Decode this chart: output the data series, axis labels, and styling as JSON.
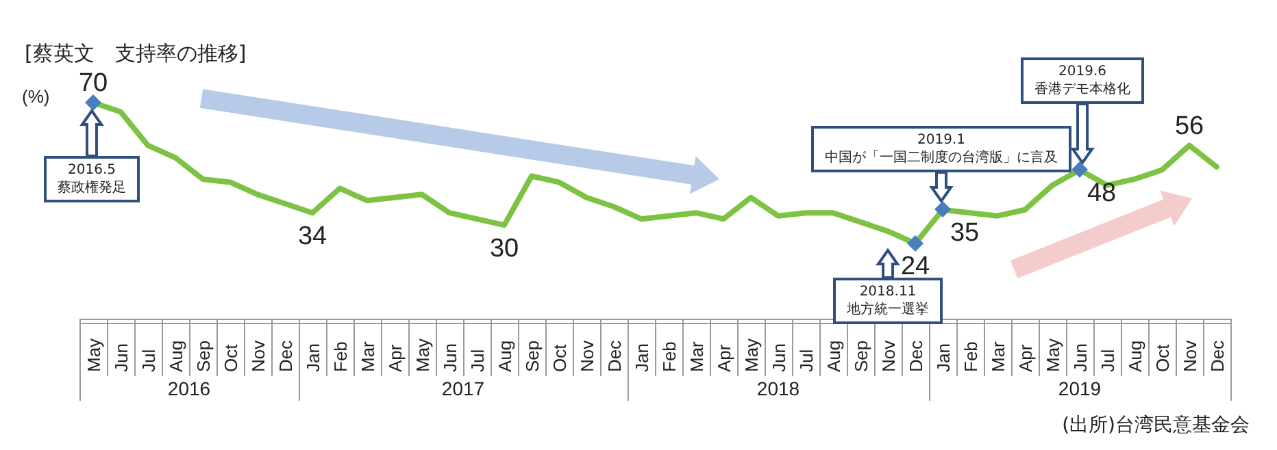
{
  "chart_data": {
    "type": "line",
    "title": "[蔡英文　支持率の推移]",
    "ylabel": "(%)",
    "legend": false,
    "marker": "none",
    "color": "#7dc242",
    "categories": [
      "May",
      "Jun",
      "Jul",
      "Aug",
      "Sep",
      "Oct",
      "Nov",
      "Dec",
      "Jan",
      "Feb",
      "Mar",
      "Apr",
      "May",
      "Jun",
      "Jul",
      "Aug",
      "Sep",
      "Oct",
      "Nov",
      "Dec",
      "Jan",
      "Feb",
      "Mar",
      "Apr",
      "May",
      "Jun",
      "Jul",
      "Aug",
      "Sep",
      "Nov",
      "Dec",
      "Jan",
      "Feb",
      "Mar",
      "Apr",
      "May",
      "Jun",
      "Jul",
      "Aug",
      "Oct",
      "Nov",
      "Dec"
    ],
    "values": [
      70,
      67,
      56,
      52,
      45,
      44,
      40,
      37,
      34,
      42,
      38,
      39,
      40,
      34,
      32,
      30,
      46,
      44,
      39,
      36,
      32,
      33,
      34,
      32,
      39,
      33,
      34,
      34,
      31,
      28,
      24,
      35,
      34,
      33,
      35,
      43,
      48,
      43,
      45,
      48,
      56,
      49
    ],
    "value_labels": [
      "70",
      null,
      null,
      null,
      null,
      null,
      null,
      null,
      "34",
      null,
      null,
      null,
      null,
      null,
      null,
      "30",
      null,
      null,
      null,
      null,
      null,
      null,
      null,
      null,
      null,
      null,
      null,
      null,
      null,
      null,
      "24",
      "35",
      null,
      null,
      null,
      null,
      "48",
      null,
      null,
      null,
      "56",
      null
    ],
    "annotations": [
      "2016.5\n蔡政権発足",
      "2018.11\n地方統一選挙",
      "2019.1\n中国が「一国二制度の台湾版」に言及",
      "2019.6\n香港デモ本格化",
      "2016",
      "2017",
      "2018",
      "2019",
      "(出所)台湾民意基金会"
    ]
  }
}
